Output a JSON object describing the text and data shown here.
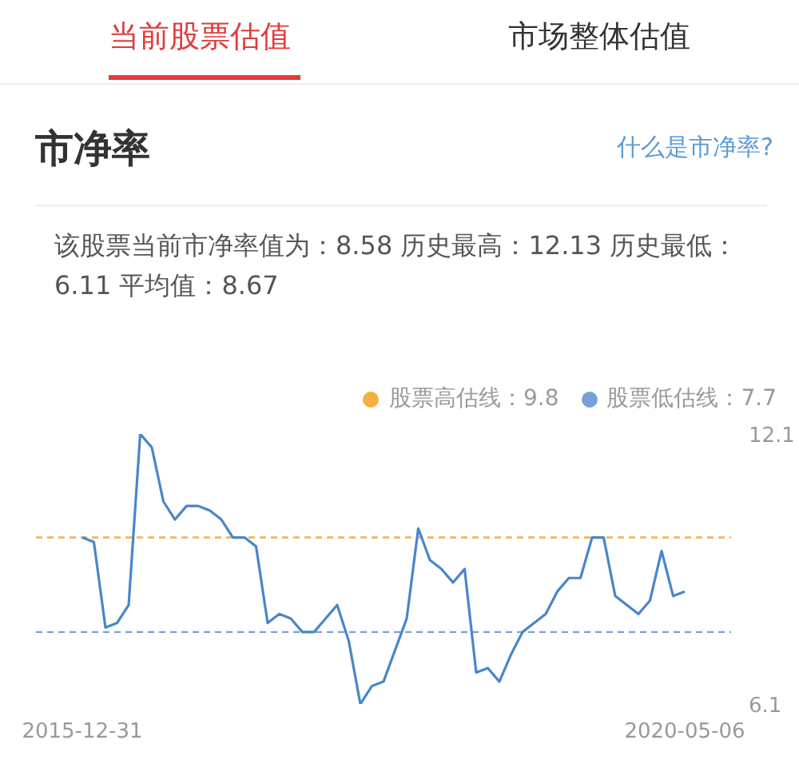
{
  "chart_data": {
    "type": "line",
    "title": "市净率",
    "annotations": [
      "当前股票估值",
      "市场整体估值",
      "什么是市净率?",
      "该股票当前市净率值为：8.58 历史最高：12.13 历史最低：6.11 平均值：8.67"
    ],
    "categories": [
      "2015-12-31",
      null,
      null,
      null,
      null,
      null,
      null,
      null,
      null,
      null,
      null,
      null,
      null,
      null,
      null,
      null,
      null,
      null,
      null,
      null,
      null,
      null,
      null,
      null,
      null,
      null,
      null,
      null,
      null,
      null,
      null,
      null,
      null,
      null,
      null,
      null,
      null,
      null,
      null,
      null,
      null,
      null,
      null,
      null,
      null,
      null,
      null,
      null,
      null,
      null,
      null,
      null,
      "2020-05-06"
    ],
    "series": [
      {
        "color": "#4a86c8",
        "values": [
          9.8,
          9.7,
          7.8,
          7.9,
          8.3,
          12.1,
          11.8,
          10.6,
          10.2,
          10.5,
          10.5,
          10.4,
          10.2,
          9.8,
          9.8,
          9.6,
          7.9,
          8.1,
          8.0,
          7.7,
          7.7,
          8.0,
          8.3,
          7.5,
          6.1,
          6.5,
          6.6,
          7.3,
          8.0,
          10.0,
          9.3,
          9.1,
          8.8,
          9.1,
          6.8,
          6.9,
          6.6,
          7.2,
          7.7,
          7.9,
          8.1,
          8.6,
          8.9,
          8.9,
          9.8,
          9.8,
          8.5,
          8.3,
          8.1,
          8.4,
          9.5,
          8.5,
          8.6
        ]
      }
    ],
    "ylim": [
      6.1,
      12.1
    ],
    "yticks": [
      6.1,
      12.1
    ],
    "ref_lines": [
      {
        "axis": "y",
        "value": 9.8,
        "label": "股票高估线：9.8",
        "color": "#f5b041",
        "line_style": "dashed"
      },
      {
        "axis": "y",
        "value": 7.7,
        "label": "股票低估线：7.7",
        "color": "#7b9fd8",
        "line_style": "dashed"
      }
    ],
    "legend": "top"
  }
}
